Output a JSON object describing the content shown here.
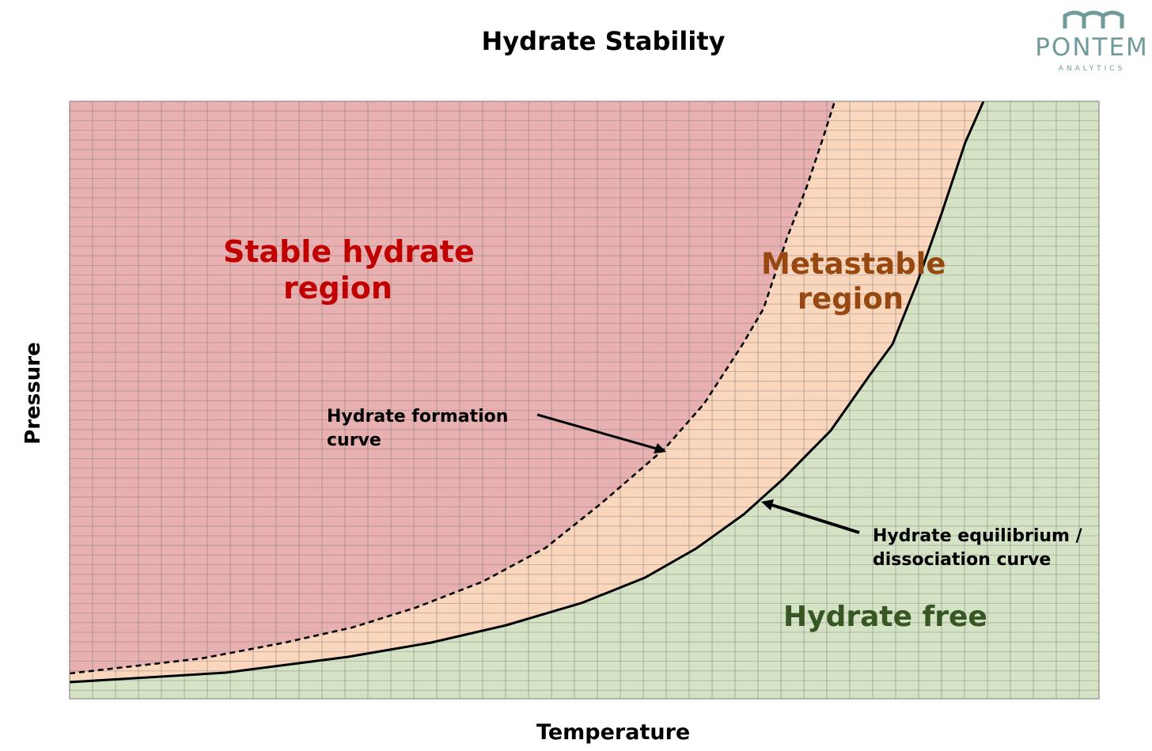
{
  "title": "Hydrate Stability",
  "logo": {
    "word": "PONTEM",
    "sub": "ANALYTICS"
  },
  "axes": {
    "x": "Temperature",
    "y": "Pressure"
  },
  "regions": {
    "stable": {
      "line1": "Stable hydrate",
      "line2": "region",
      "color": "#c00000",
      "fill": "#e8b0b0"
    },
    "metastable": {
      "line1": "Metastable",
      "line2": "region",
      "color": "#964810",
      "fill": "#f9d6bc"
    },
    "free": {
      "label": "Hydrate free",
      "color": "#375623",
      "fill": "#d3e3c4"
    }
  },
  "annotations": {
    "formation": {
      "line1": "Hydrate formation",
      "line2": "curve"
    },
    "equilibrium": {
      "line1": "Hydrate equilibrium /",
      "line2": "dissociation curve"
    }
  },
  "colors": {
    "grid_line": "rgba(110,110,110,0.45)",
    "curve": "#000000",
    "logo": "#6f9b9b"
  }
}
